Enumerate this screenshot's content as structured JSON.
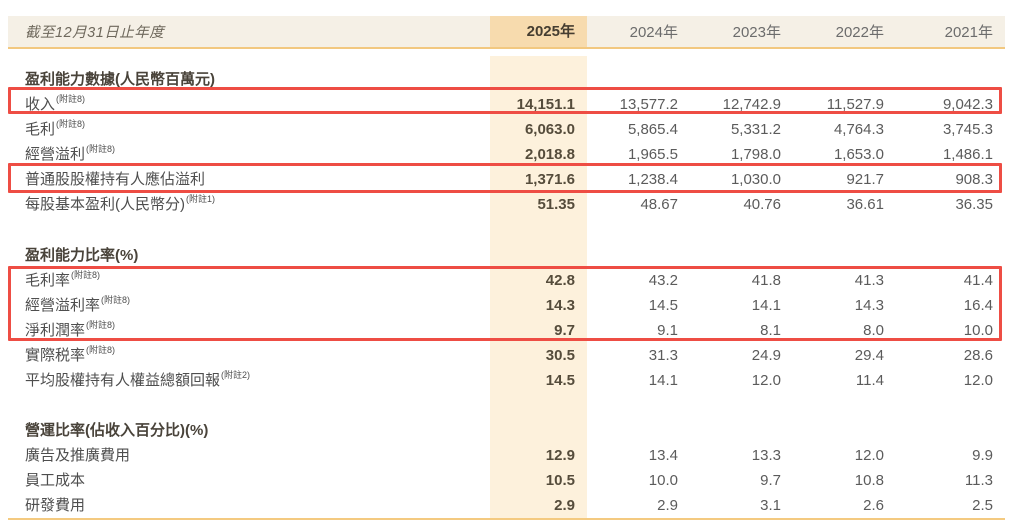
{
  "table": {
    "period_label": "截至12月31日止年度",
    "years": [
      "2025年",
      "2024年",
      "2023年",
      "2022年",
      "2021年"
    ],
    "highlight_year": "2025年",
    "sections": [
      {
        "heading": "盈利能力數據(人民幣百萬元)",
        "rows": [
          {
            "label": "收入",
            "note": "(附註8)",
            "values": [
              "14,151.1",
              "13,577.2",
              "12,742.9",
              "11,527.9",
              "9,042.3"
            ]
          },
          {
            "label": "毛利",
            "note": "(附註8)",
            "values": [
              "6,063.0",
              "5,865.4",
              "5,331.2",
              "4,764.3",
              "3,745.3"
            ]
          },
          {
            "label": "經營溢利",
            "note": "(附註8)",
            "values": [
              "2,018.8",
              "1,965.5",
              "1,798.0",
              "1,653.0",
              "1,486.1"
            ]
          },
          {
            "label": "普通股股權持有人應佔溢利",
            "note": "",
            "values": [
              "1,371.6",
              "1,238.4",
              "1,030.0",
              "921.7",
              "908.3"
            ]
          },
          {
            "label": "每股基本盈利(人民幣分)",
            "note": "(附註1)",
            "values": [
              "51.35",
              "48.67",
              "40.76",
              "36.61",
              "36.35"
            ]
          }
        ]
      },
      {
        "heading": "盈利能力比率(%)",
        "rows": [
          {
            "label": "毛利率",
            "note": "(附註8)",
            "values": [
              "42.8",
              "43.2",
              "41.8",
              "41.3",
              "41.4"
            ]
          },
          {
            "label": "經營溢利率",
            "note": "(附註8)",
            "values": [
              "14.3",
              "14.5",
              "14.1",
              "14.3",
              "16.4"
            ]
          },
          {
            "label": "淨利潤率",
            "note": "(附註8)",
            "values": [
              "9.7",
              "9.1",
              "8.1",
              "8.0",
              "10.0"
            ]
          },
          {
            "label": "實際税率",
            "note": "(附註8)",
            "values": [
              "30.5",
              "31.3",
              "24.9",
              "29.4",
              "28.6"
            ]
          },
          {
            "label": "平均股權持有人權益總額回報",
            "note": "(附註2)",
            "values": [
              "14.5",
              "14.1",
              "12.0",
              "11.4",
              "12.0"
            ]
          }
        ]
      },
      {
        "heading": "營運比率(佔收入百分比)(%)",
        "rows": [
          {
            "label": "廣告及推廣費用",
            "note": "",
            "values": [
              "12.9",
              "13.4",
              "13.3",
              "12.0",
              "9.9"
            ]
          },
          {
            "label": "員工成本",
            "note": "",
            "values": [
              "10.5",
              "10.0",
              "9.7",
              "10.8",
              "11.3"
            ]
          },
          {
            "label": "研發費用",
            "note": "",
            "values": [
              "2.9",
              "2.9",
              "3.1",
              "2.6",
              "2.5"
            ]
          }
        ]
      }
    ],
    "annotations": {
      "box_color": "#ee4d44",
      "boxed_rows": [
        "收入",
        "普通股股權持有人應佔溢利",
        "毛利率",
        "經營溢利率",
        "淨利潤率"
      ]
    },
    "colors": {
      "header_band_bg": "#f5f0e6",
      "highlight_header_bg": "#f7dbae",
      "highlight_column_bg": "#fdf1dc",
      "rule_line": "#f2c880",
      "red_box": "#ee4d44"
    }
  }
}
